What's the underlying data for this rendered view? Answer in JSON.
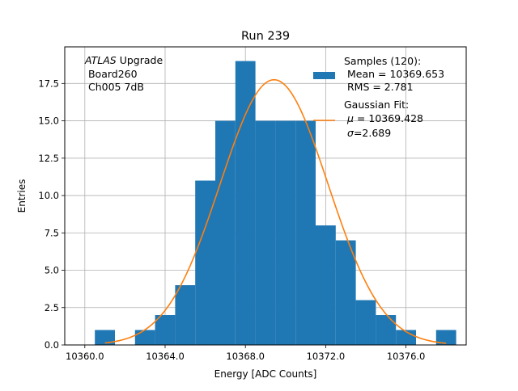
{
  "chart_data": {
    "type": "bar",
    "title": "Run 239",
    "xlabel": "Energy [ADC Counts]",
    "ylabel": "Entries",
    "xlim": [
      10359.0,
      10379.0
    ],
    "ylim": [
      0,
      19.95
    ],
    "grid": true,
    "xticks": [
      10360.0,
      10364.0,
      10368.0,
      10372.0,
      10376.0
    ],
    "xtick_labels": [
      "10360.0",
      "10364.0",
      "10368.0",
      "10372.0",
      "10376.0"
    ],
    "yticks": [
      0.0,
      2.5,
      5.0,
      7.5,
      10.0,
      12.5,
      15.0,
      17.5
    ],
    "ytick_labels": [
      "0.0",
      "2.5",
      "5.0",
      "7.5",
      "10.0",
      "12.5",
      "15.0",
      "17.5"
    ],
    "bin_width": 1.0,
    "bins": [
      {
        "x": 10361.0,
        "count": 1
      },
      {
        "x": 10362.0,
        "count": 0
      },
      {
        "x": 10363.0,
        "count": 1
      },
      {
        "x": 10364.0,
        "count": 2
      },
      {
        "x": 10365.0,
        "count": 4
      },
      {
        "x": 10366.0,
        "count": 11
      },
      {
        "x": 10367.0,
        "count": 15
      },
      {
        "x": 10368.0,
        "count": 19
      },
      {
        "x": 10369.0,
        "count": 15
      },
      {
        "x": 10370.0,
        "count": 15
      },
      {
        "x": 10371.0,
        "count": 15
      },
      {
        "x": 10372.0,
        "count": 8
      },
      {
        "x": 10373.0,
        "count": 7
      },
      {
        "x": 10374.0,
        "count": 3
      },
      {
        "x": 10375.0,
        "count": 2
      },
      {
        "x": 10376.0,
        "count": 1
      },
      {
        "x": 10377.0,
        "count": 0
      },
      {
        "x": 10378.0,
        "count": 1
      }
    ],
    "fit": {
      "mu": 10369.428,
      "sigma": 2.689,
      "amplitude": 17.75,
      "x_range": [
        10361.0,
        10378.0
      ]
    },
    "series": [
      {
        "name": "Samples (120):",
        "color": "#1f77b4"
      },
      {
        "name": "Gaussian Fit:",
        "color": "#ff7f0e"
      }
    ],
    "legend": {
      "samples_lines": [
        "Samples (120):",
        " Mean = 10369.653",
        " RMS = 2.781"
      ],
      "fit_title": "Gaussian Fit:",
      "fit_mu_symbol": "μ",
      "fit_mu_text": " = 10369.428",
      "fit_sigma_symbol": "σ",
      "fit_sigma_text": "=2.689",
      "placement": "top-right"
    },
    "annotation": {
      "italic": "ATLAS",
      "rest": " Upgrade",
      "line2": " Board260",
      "line3": " Ch005 7dB"
    }
  }
}
